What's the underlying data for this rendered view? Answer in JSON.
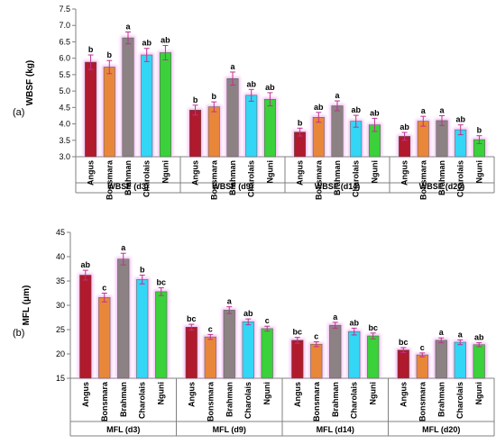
{
  "colors": {
    "Angus": "#b01a2c",
    "Bonsmara": "#e8873a",
    "Brahman": "#8c8283",
    "Charolais": "#33d6f5",
    "Nguni": "#3ad13a",
    "glow": "#f0a8f0",
    "error": "#c03090"
  },
  "chart_data": [
    {
      "type": "bar",
      "panel_label": "(a)",
      "ylabel": "WBSF (kg)",
      "ylim": [
        3.0,
        7.5
      ],
      "yticks": [
        "3.0",
        "3.5",
        "4.0",
        "4.5",
        "5.0",
        "5.5",
        "6.0",
        "6.5",
        "7.0",
        "7.5"
      ],
      "ytick_values": [
        3.0,
        3.5,
        4.0,
        4.5,
        5.0,
        5.5,
        6.0,
        6.5,
        7.0,
        7.5
      ],
      "categories": [
        "Angus",
        "Bonsmara",
        "Brahman",
        "Charolais",
        "Nguni"
      ],
      "groups": [
        {
          "name": "WBSF (d3)",
          "values": [
            5.88,
            5.73,
            6.62,
            6.1,
            6.17
          ],
          "errors": [
            0.22,
            0.2,
            0.18,
            0.2,
            0.22
          ],
          "letters": [
            "b",
            "b",
            "a",
            "ab",
            "ab"
          ]
        },
        {
          "name": "WBSF (d9)",
          "values": [
            4.42,
            4.52,
            5.38,
            4.87,
            4.75
          ],
          "errors": [
            0.15,
            0.15,
            0.2,
            0.18,
            0.2
          ],
          "letters": [
            "b",
            "b",
            "a",
            "ab",
            "ab"
          ]
        },
        {
          "name": "WBSF (d14)",
          "values": [
            3.75,
            4.2,
            4.55,
            4.08,
            3.97
          ],
          "errors": [
            0.12,
            0.15,
            0.15,
            0.18,
            0.2
          ],
          "letters": [
            "b",
            "ab",
            "a",
            "ab",
            "ab"
          ]
        },
        {
          "name": "WBSF (d20)",
          "values": [
            3.62,
            4.08,
            4.1,
            3.82,
            3.52
          ],
          "errors": [
            0.12,
            0.15,
            0.15,
            0.15,
            0.12
          ],
          "letters": [
            "ab",
            "a",
            "a",
            "ab",
            "b"
          ]
        }
      ]
    },
    {
      "type": "bar",
      "panel_label": "(b)",
      "ylabel": "MFL (μm)",
      "ylim": [
        15,
        45
      ],
      "yticks": [
        "15",
        "20",
        "25",
        "30",
        "35",
        "40",
        "45"
      ],
      "ytick_values": [
        15,
        20,
        25,
        30,
        35,
        40,
        45
      ],
      "categories": [
        "Angus",
        "Bonsmara",
        "Brahman",
        "Charolais",
        "Nguni"
      ],
      "groups": [
        {
          "name": "MFL (d3)",
          "values": [
            36.2,
            31.6,
            39.5,
            35.3,
            32.8
          ],
          "errors": [
            1.0,
            0.9,
            1.2,
            0.9,
            0.8
          ],
          "letters": [
            "ab",
            "c",
            "a",
            "b",
            "bc"
          ]
        },
        {
          "name": "MFL (d9)",
          "values": [
            25.5,
            23.5,
            29.0,
            26.6,
            25.2
          ],
          "errors": [
            0.6,
            0.5,
            0.7,
            0.6,
            0.5
          ],
          "letters": [
            "bc",
            "c",
            "a",
            "ab",
            "c"
          ]
        },
        {
          "name": "MFL (d14)",
          "values": [
            22.8,
            22.0,
            25.9,
            24.6,
            23.7
          ],
          "errors": [
            0.6,
            0.5,
            0.6,
            0.7,
            0.6
          ],
          "letters": [
            "bc",
            "c",
            "a",
            "ab",
            "bc"
          ]
        },
        {
          "name": "MFL (d20)",
          "values": [
            20.8,
            19.8,
            22.8,
            22.4,
            21.9
          ],
          "errors": [
            0.5,
            0.4,
            0.5,
            0.5,
            0.4
          ],
          "letters": [
            "bc",
            "c",
            "a",
            "a",
            "ab"
          ]
        }
      ]
    }
  ]
}
